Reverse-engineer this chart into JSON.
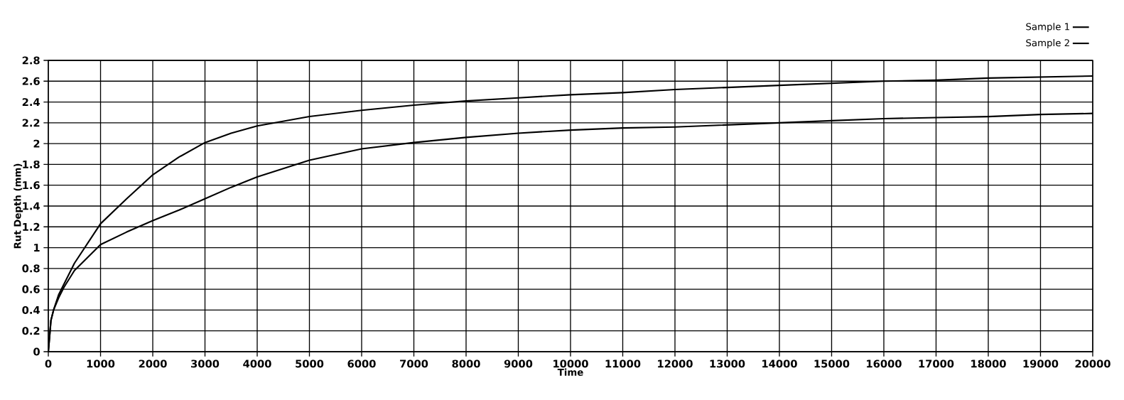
{
  "chart_data": {
    "type": "line",
    "xlabel": "Time",
    "ylabel": "Rut Depth (mm)",
    "x": [
      0,
      50,
      100,
      200,
      300,
      500,
      1000,
      1500,
      2000,
      2500,
      3000,
      3500,
      4000,
      5000,
      6000,
      7000,
      8000,
      9000,
      10000,
      11000,
      12000,
      13000,
      14000,
      15000,
      16000,
      17000,
      18000,
      19000,
      20000
    ],
    "series": [
      {
        "name": "Sample 1",
        "color": "#000000",
        "values": [
          0,
          0.3,
          0.4,
          0.55,
          0.65,
          0.85,
          1.23,
          1.47,
          1.7,
          1.87,
          2.01,
          2.1,
          2.17,
          2.26,
          2.32,
          2.37,
          2.41,
          2.44,
          2.47,
          2.49,
          2.52,
          2.54,
          2.56,
          2.58,
          2.6,
          2.61,
          2.63,
          2.64,
          2.65
        ]
      },
      {
        "name": "Sample 2",
        "color": "#000000",
        "values": [
          0,
          0.3,
          0.4,
          0.52,
          0.62,
          0.78,
          1.03,
          1.15,
          1.26,
          1.36,
          1.47,
          1.58,
          1.68,
          1.84,
          1.95,
          2.01,
          2.06,
          2.1,
          2.13,
          2.15,
          2.16,
          2.18,
          2.2,
          2.22,
          2.24,
          2.25,
          2.26,
          2.28,
          2.29
        ]
      }
    ],
    "xlim": [
      0,
      20000
    ],
    "ylim": [
      0,
      2.8
    ],
    "xticks": [
      0,
      1000,
      2000,
      3000,
      4000,
      5000,
      6000,
      7000,
      8000,
      9000,
      10000,
      11000,
      12000,
      13000,
      14000,
      15000,
      16000,
      17000,
      18000,
      19000,
      20000
    ],
    "yticks": [
      0,
      0.2,
      0.4,
      0.6,
      0.8,
      1,
      1.2,
      1.4,
      1.6,
      1.8,
      2,
      2.2,
      2.4,
      2.6,
      2.8
    ],
    "grid": true,
    "legend": "top right",
    "marker": "none",
    "line_style": "solid"
  }
}
